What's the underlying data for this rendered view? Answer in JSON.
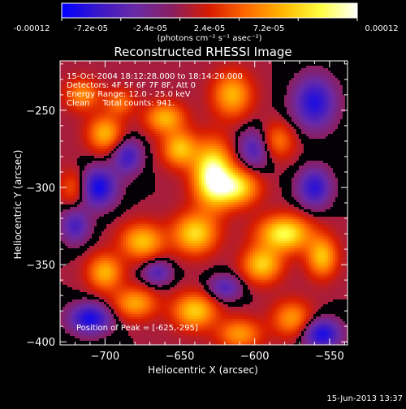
{
  "colorbar": {
    "tick_labels": [
      "-0.00012",
      "-7.2e-05",
      "-2.4e-05",
      "2.4e-05",
      "7.2e-05",
      "0.00012"
    ],
    "min": -0.00012,
    "max": 0.00012,
    "unit_label": "(photons cm⁻² s⁻¹ asec⁻²)",
    "stops": [
      "#0000ff",
      "#3a18c8",
      "#6a2aa6",
      "#8a1e60",
      "#d81c00",
      "#ff6a00",
      "#ffb800",
      "#ffff40",
      "#ffffff"
    ]
  },
  "info": {
    "line1": "15-Oct-2004 18:12:28.000 to 18:14:20.000",
    "line2": "Detectors: 4F 5F 6F 7F 8F, Att 0",
    "line3": "Energy Range: 12.0 - 25.0 keV",
    "line4": "Clean     Total counts: 941.",
    "peak": "Position of Peak = [-625,-295]"
  },
  "footer": {
    "timestamp": "15-Jun-2013 13:37"
  },
  "chart_data": {
    "type": "heatmap",
    "title": "Reconstructed RHESSI Image",
    "xlabel": "Heliocentric X (arcsec)",
    "ylabel": "Heliocentric Y (arcsec)",
    "xlim": [
      -730,
      -538
    ],
    "ylim": [
      -402,
      -218
    ],
    "x_ticks": [
      -700,
      -650,
      -600,
      -550
    ],
    "y_ticks": [
      -250,
      -300,
      -350,
      -400
    ],
    "x_tick_labels": [
      "−700",
      "−650",
      "−600",
      "−550"
    ],
    "y_tick_labels": [
      "−250",
      "−300",
      "−350",
      "−400"
    ],
    "peak": {
      "x": -625,
      "y": -295
    },
    "components": [
      {
        "x": -628,
        "y": -292,
        "sx": 9,
        "sy": 14,
        "amp": 1.25
      },
      {
        "x": -612,
        "y": -300,
        "sx": 10,
        "sy": 8,
        "amp": 0.9
      },
      {
        "x": -650,
        "y": -275,
        "sx": 8,
        "sy": 8,
        "amp": 0.75
      },
      {
        "x": -660,
        "y": -255,
        "sx": 9,
        "sy": 7,
        "amp": 0.7
      },
      {
        "x": -580,
        "y": -330,
        "sx": 12,
        "sy": 8,
        "amp": 1.0
      },
      {
        "x": -595,
        "y": -350,
        "sx": 9,
        "sy": 8,
        "amp": 0.8
      },
      {
        "x": -555,
        "y": -345,
        "sx": 7,
        "sy": 9,
        "amp": 0.75
      },
      {
        "x": -640,
        "y": -330,
        "sx": 10,
        "sy": 9,
        "amp": 0.85
      },
      {
        "x": -675,
        "y": -335,
        "sx": 10,
        "sy": 8,
        "amp": 0.75
      },
      {
        "x": -700,
        "y": -355,
        "sx": 8,
        "sy": 8,
        "amp": 0.7
      },
      {
        "x": -680,
        "y": -375,
        "sx": 10,
        "sy": 7,
        "amp": 0.65
      },
      {
        "x": -640,
        "y": -380,
        "sx": 10,
        "sy": 8,
        "amp": 0.8
      },
      {
        "x": -610,
        "y": -395,
        "sx": 10,
        "sy": 7,
        "amp": 0.6
      },
      {
        "x": -575,
        "y": -385,
        "sx": 9,
        "sy": 8,
        "amp": 0.6
      },
      {
        "x": -700,
        "y": -265,
        "sx": 8,
        "sy": 8,
        "amp": 0.7
      },
      {
        "x": -715,
        "y": -240,
        "sx": 8,
        "sy": 7,
        "amp": 0.55
      },
      {
        "x": -615,
        "y": -240,
        "sx": 9,
        "sy": 10,
        "amp": 0.7
      },
      {
        "x": -585,
        "y": -270,
        "sx": 8,
        "sy": 8,
        "amp": 0.5
      },
      {
        "x": -690,
        "y": -245,
        "sx": 7,
        "sy": 6,
        "amp": 0.45
      },
      {
        "x": -720,
        "y": -300,
        "sx": 7,
        "sy": 8,
        "amp": 0.45
      },
      {
        "x": -705,
        "y": -300,
        "sx": 9,
        "sy": 9,
        "amp": -0.85
      },
      {
        "x": -685,
        "y": -280,
        "sx": 7,
        "sy": 8,
        "amp": -0.6
      },
      {
        "x": -560,
        "y": -245,
        "sx": 10,
        "sy": 12,
        "amp": -0.75
      },
      {
        "x": -560,
        "y": -300,
        "sx": 8,
        "sy": 9,
        "amp": -0.7
      },
      {
        "x": -600,
        "y": -275,
        "sx": 8,
        "sy": 9,
        "amp": -0.55
      },
      {
        "x": -710,
        "y": -385,
        "sx": 10,
        "sy": 7,
        "amp": -0.8
      },
      {
        "x": -555,
        "y": -395,
        "sx": 9,
        "sy": 7,
        "amp": -0.8
      },
      {
        "x": -665,
        "y": -355,
        "sx": 7,
        "sy": 6,
        "amp": -0.5
      },
      {
        "x": -620,
        "y": -365,
        "sx": 8,
        "sy": 6,
        "amp": -0.5
      },
      {
        "x": -720,
        "y": -325,
        "sx": 7,
        "sy": 8,
        "amp": -0.55
      }
    ]
  }
}
